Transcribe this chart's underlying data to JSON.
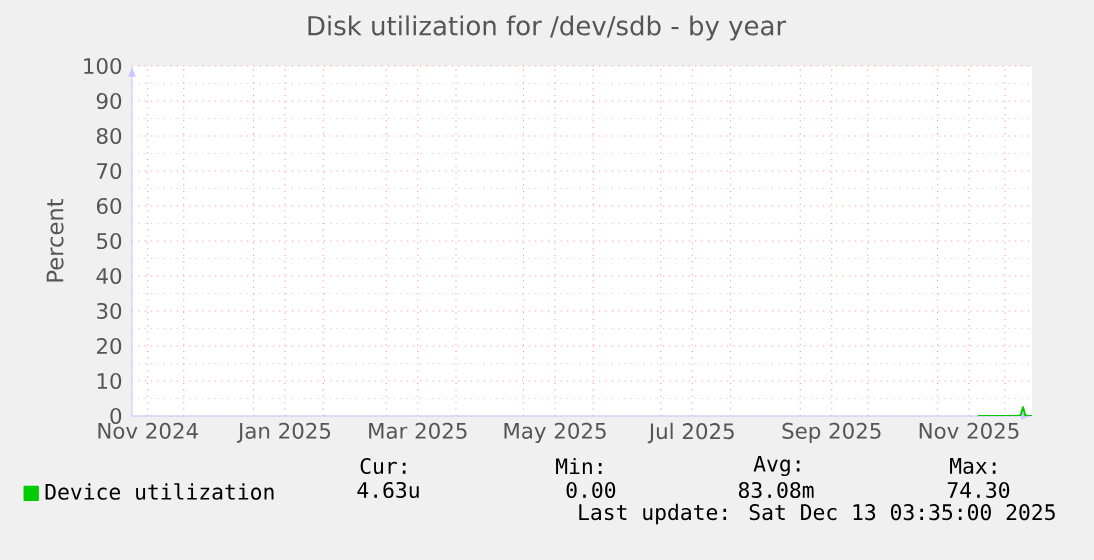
{
  "chart_data": {
    "type": "line",
    "title": "Disk utilization for /dev/sdb - by year",
    "ylabel": "Percent",
    "xlim": [
      "2024-11-08",
      "2025-12-13"
    ],
    "ylim": [
      0,
      100
    ],
    "yticks": [
      0,
      10,
      20,
      30,
      40,
      50,
      60,
      70,
      80,
      90,
      100
    ],
    "xticks": [
      {
        "value": "2024-11-15",
        "label": "Nov 2024"
      },
      {
        "value": "2024-12-01",
        "label": null
      },
      {
        "value": "2025-01-01",
        "label": null
      },
      {
        "value": "2025-01-15",
        "label": "Jan 2025"
      },
      {
        "value": "2025-02-01",
        "label": null
      },
      {
        "value": "2025-03-01",
        "label": null
      },
      {
        "value": "2025-03-15",
        "label": "Mar 2025"
      },
      {
        "value": "2025-04-01",
        "label": null
      },
      {
        "value": "2025-05-01",
        "label": null
      },
      {
        "value": "2025-05-15",
        "label": "May 2025"
      },
      {
        "value": "2025-06-01",
        "label": null
      },
      {
        "value": "2025-07-01",
        "label": null
      },
      {
        "value": "2025-07-15",
        "label": "Jul 2025"
      },
      {
        "value": "2025-08-01",
        "label": null
      },
      {
        "value": "2025-09-01",
        "label": null
      },
      {
        "value": "2025-09-15",
        "label": "Sep 2025"
      },
      {
        "value": "2025-10-01",
        "label": null
      },
      {
        "value": "2025-11-01",
        "label": null
      },
      {
        "value": "2025-11-15",
        "label": "Nov 2025"
      },
      {
        "value": "2025-12-01",
        "label": null
      }
    ],
    "grid": true,
    "legend": "bottom left",
    "marker": "none",
    "line_style": "solid",
    "series": [
      {
        "name": "Device utilization",
        "color": "#00cc00",
        "x": [
          "2025-11-19",
          "2025-12-07",
          "2025-12-08",
          "2025-12-09",
          "2025-12-10",
          "2025-12-11",
          "2025-12-13"
        ],
        "values": [
          0,
          0,
          0.3,
          2.5,
          0.2,
          0,
          0
        ]
      }
    ],
    "annotations": [
      "Cur:",
      "Min:",
      "Avg:",
      "Max:",
      "4.63u",
      "0.00",
      "83.08m",
      "74.30",
      "Last update: Sat Dec 13 03:35:00 2025"
    ]
  }
}
